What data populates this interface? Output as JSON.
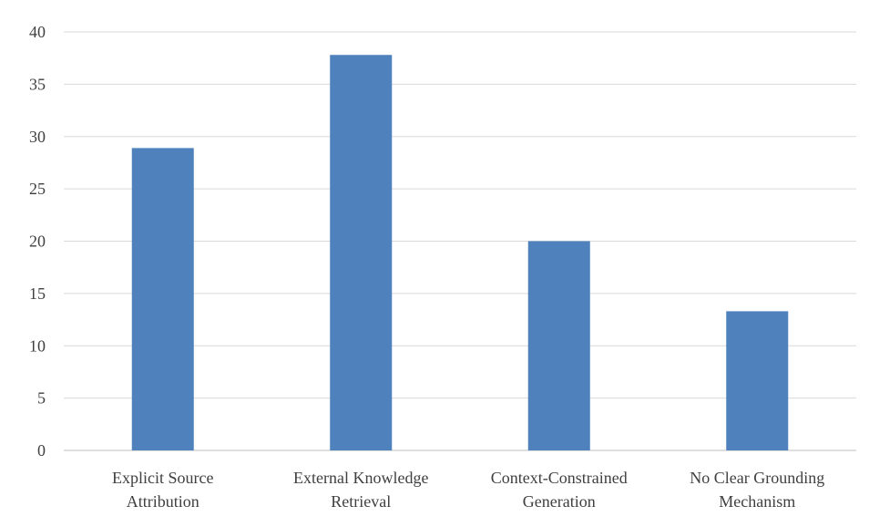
{
  "chart_data": {
    "type": "bar",
    "title": "",
    "xlabel": "",
    "ylabel": "",
    "categories": [
      [
        "Explicit Source",
        "Attribution"
      ],
      [
        "External Knowledge",
        "Retrieval"
      ],
      [
        "Context-Constrained",
        "Generation"
      ],
      [
        "No Clear Grounding",
        "Mechanism"
      ]
    ],
    "values": [
      28.9,
      37.8,
      20.0,
      13.3
    ],
    "ylim": [
      0,
      40
    ],
    "yticks": [
      0,
      5,
      10,
      15,
      20,
      25,
      30,
      35,
      40
    ],
    "grid": true,
    "legend": "none",
    "bar_color": "#4f81bd"
  }
}
